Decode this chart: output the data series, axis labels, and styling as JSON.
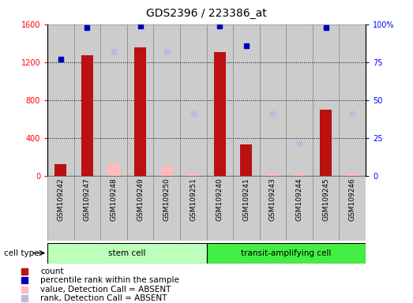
{
  "title": "GDS2396 / 223386_at",
  "samples": [
    "GSM109242",
    "GSM109247",
    "GSM109248",
    "GSM109249",
    "GSM109250",
    "GSM109251",
    "GSM109240",
    "GSM109241",
    "GSM109243",
    "GSM109244",
    "GSM109245",
    "GSM109246"
  ],
  "count_values": [
    120,
    1270,
    null,
    1360,
    null,
    null,
    1310,
    330,
    null,
    null,
    700,
    null
  ],
  "count_absent": [
    null,
    null,
    130,
    null,
    110,
    20,
    null,
    null,
    20,
    20,
    null,
    20
  ],
  "percentile_rank": [
    77,
    98,
    null,
    99,
    null,
    null,
    99,
    86,
    null,
    null,
    98,
    null
  ],
  "rank_absent": [
    null,
    null,
    82,
    null,
    82,
    41,
    null,
    null,
    41,
    21,
    null,
    41
  ],
  "left_ylim": [
    0,
    1600
  ],
  "right_ylim": [
    0,
    100
  ],
  "left_yticks": [
    0,
    400,
    800,
    1200,
    1600
  ],
  "right_yticks": [
    0,
    25,
    50,
    75,
    100
  ],
  "bar_color": "#bb1111",
  "bar_absent_color": "#ffbbbb",
  "dot_color": "#0000bb",
  "dot_absent_color": "#bbbbdd",
  "stem_cell_color": "#bbffbb",
  "transit_cell_color": "#44ee44",
  "col_bg_color": "#cccccc",
  "legend_items": [
    "count",
    "percentile rank within the sample",
    "value, Detection Call = ABSENT",
    "rank, Detection Call = ABSENT"
  ]
}
